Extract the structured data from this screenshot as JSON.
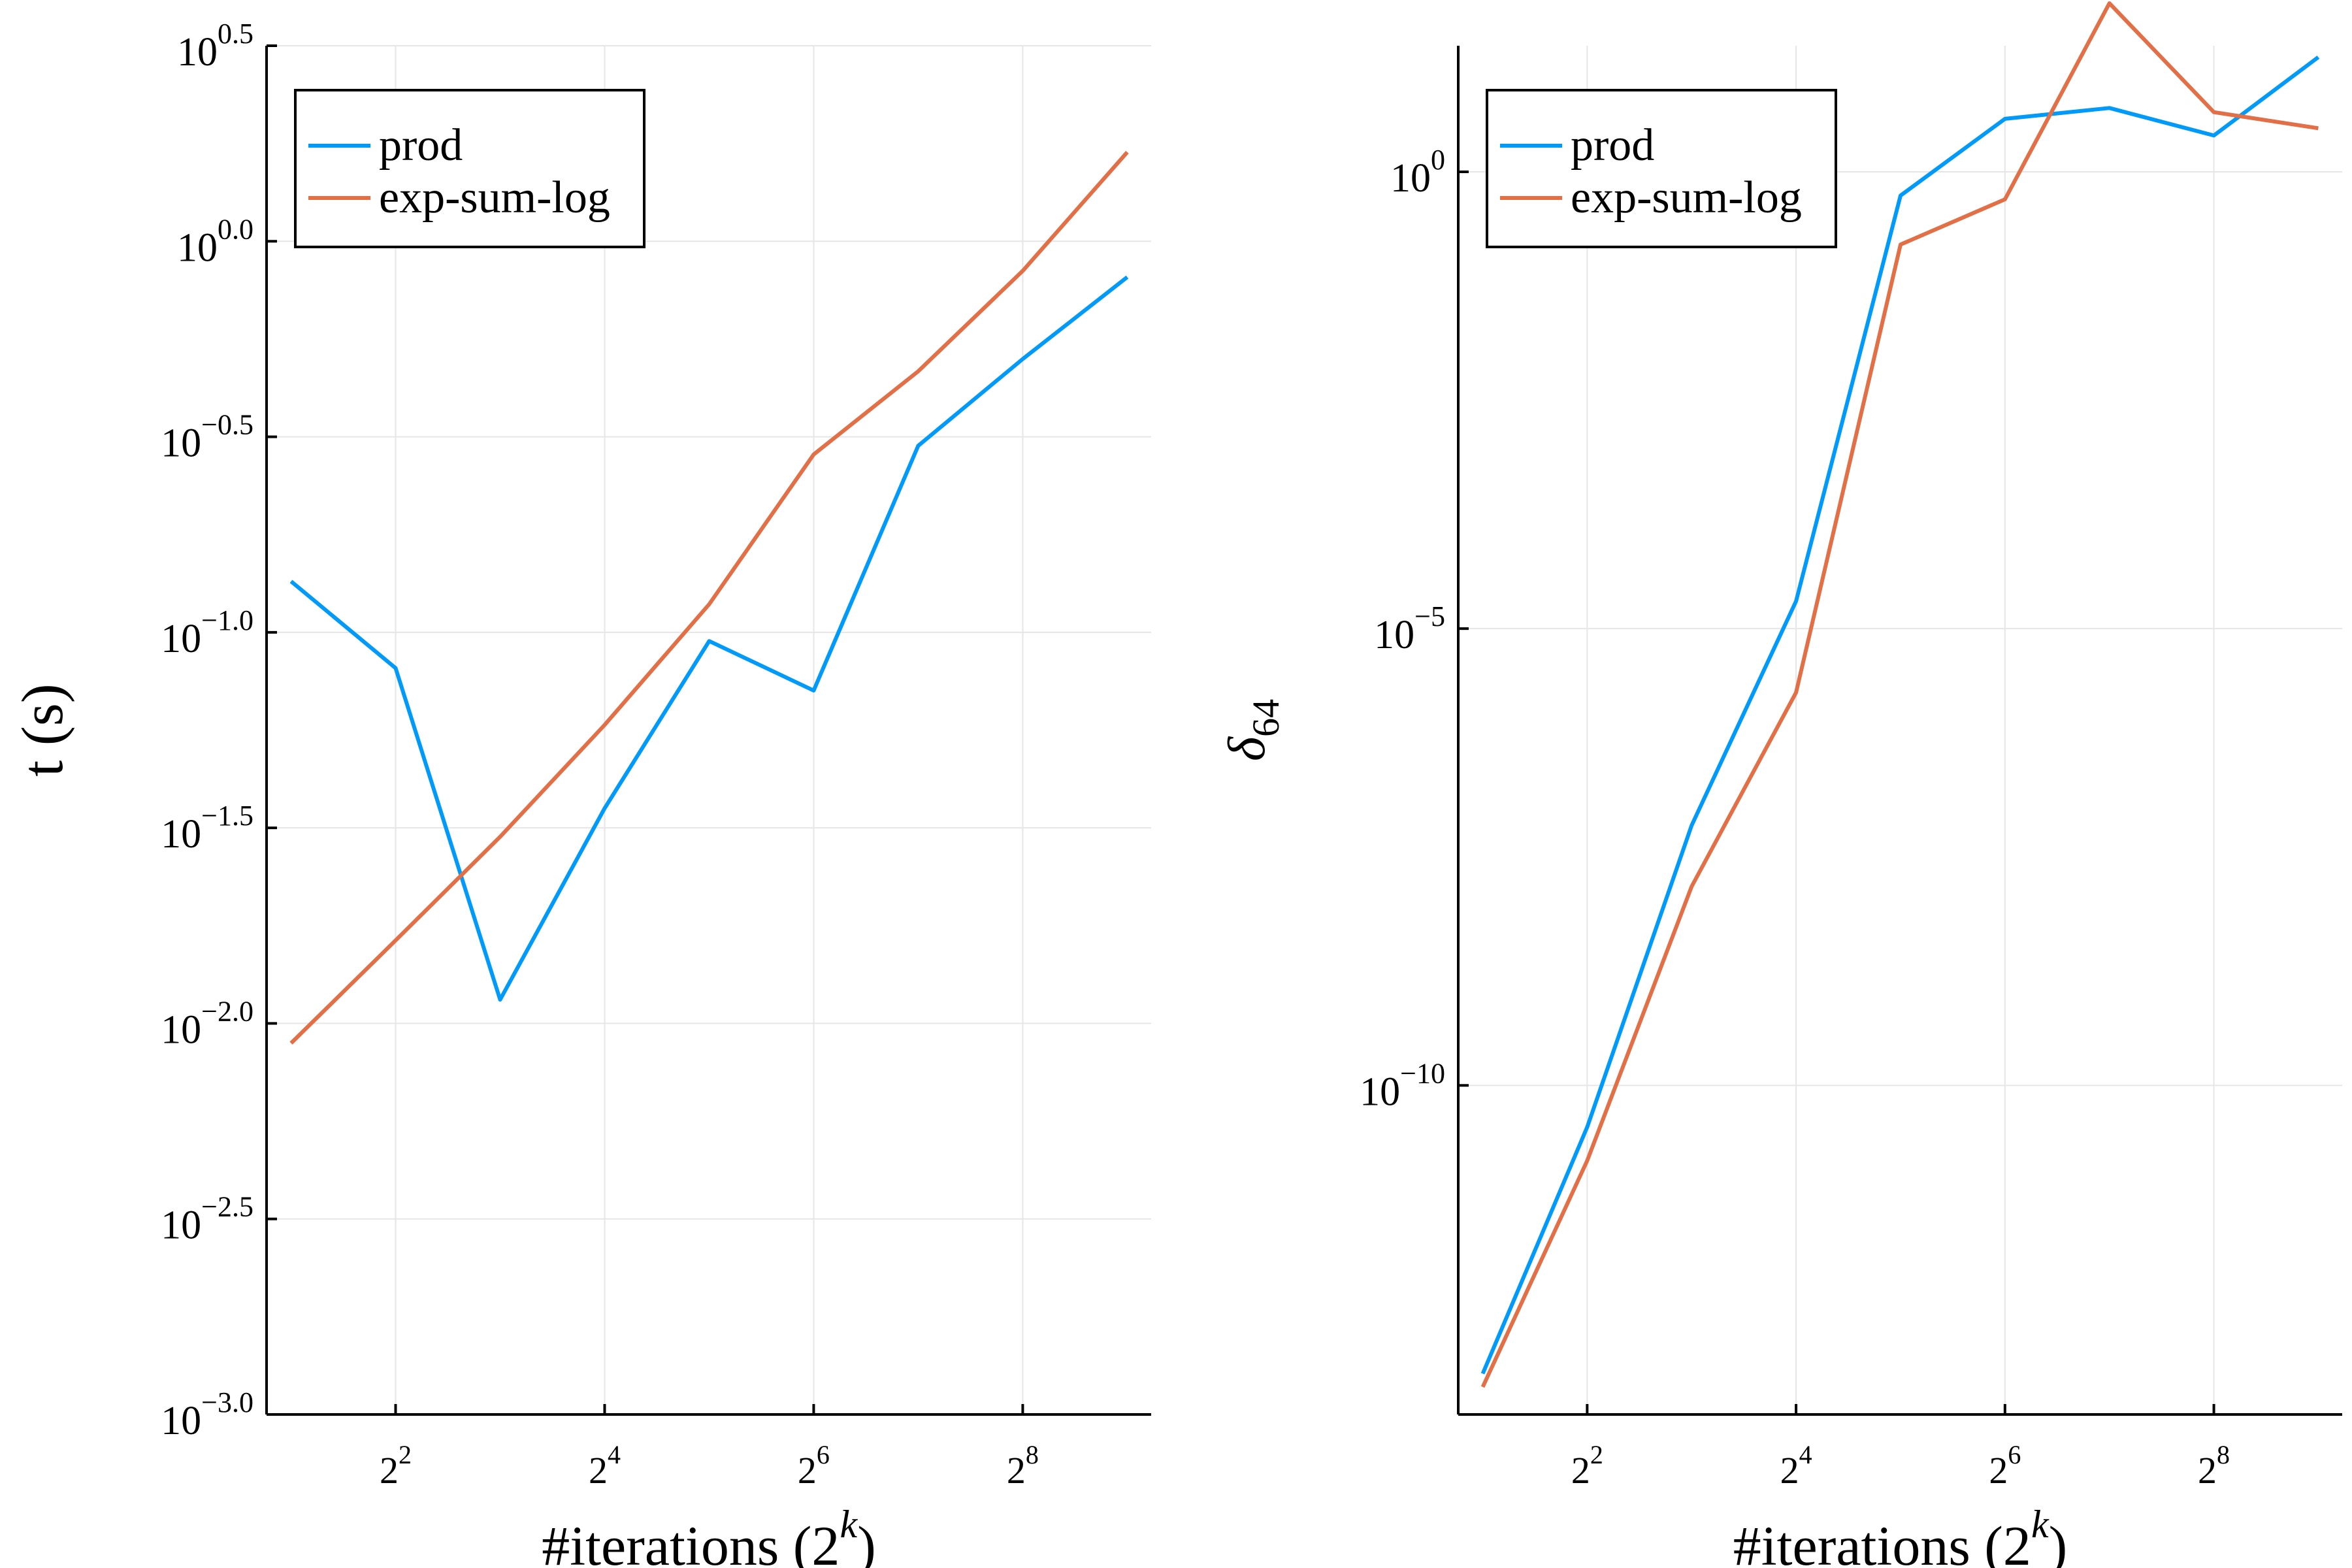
{
  "chart_data": [
    {
      "type": "line",
      "xlabel": "#iterations (2",
      "xlabel_sup": "k",
      "xlabel_end": ")",
      "ylabel": "t (s)",
      "ylabel_sub": "",
      "x_ticks": [
        {
          "value": 4,
          "base": "2",
          "exp": "2"
        },
        {
          "value": 16,
          "base": "2",
          "exp": "4"
        },
        {
          "value": 64,
          "base": "2",
          "exp": "6"
        },
        {
          "value": 256,
          "base": "2",
          "exp": "8"
        }
      ],
      "y_ticks": [
        {
          "value": 0.001,
          "base": "10",
          "exp": "−3.0"
        },
        {
          "value": 0.0031623,
          "base": "10",
          "exp": "−2.5"
        },
        {
          "value": 0.01,
          "base": "10",
          "exp": "−2.0"
        },
        {
          "value": 0.031623,
          "base": "10",
          "exp": "−1.5"
        },
        {
          "value": 0.1,
          "base": "10",
          "exp": "−1.0"
        },
        {
          "value": 0.31623,
          "base": "10",
          "exp": "−0.5"
        },
        {
          "value": 1.0,
          "base": "10",
          "exp": "0.0"
        },
        {
          "value": 3.1623,
          "base": "10",
          "exp": "0.5"
        }
      ],
      "xscale": "log2",
      "yscale": "log10",
      "xlim": [
        1.7,
        600
      ],
      "ylim": [
        0.001,
        3.1623
      ],
      "grid": true,
      "legend_position": "top-left",
      "x": [
        2,
        4,
        8,
        16,
        32,
        64,
        128,
        256,
        512
      ],
      "series": [
        {
          "name": "prod",
          "color": "#009AFA",
          "values": [
            0.135,
            0.081,
            0.0115,
            0.0355,
            0.095,
            0.071,
            0.3,
            0.5,
            0.81
          ]
        },
        {
          "name": "exp-sum-log",
          "color": "#E26F46",
          "values": [
            0.0089,
            0.0163,
            0.03,
            0.058,
            0.118,
            0.285,
            0.465,
            0.84,
            1.69
          ]
        }
      ]
    },
    {
      "type": "line",
      "xlabel": "#iterations (2",
      "xlabel_sup": "k",
      "xlabel_end": ")",
      "ylabel": "δ",
      "ylabel_sub": "64",
      "x_ticks": [
        {
          "value": 4,
          "base": "2",
          "exp": "2"
        },
        {
          "value": 16,
          "base": "2",
          "exp": "4"
        },
        {
          "value": 64,
          "base": "2",
          "exp": "6"
        },
        {
          "value": 256,
          "base": "2",
          "exp": "8"
        }
      ],
      "y_ticks": [
        {
          "value": 1e-10,
          "base": "10",
          "exp": "−10"
        },
        {
          "value": 1e-05,
          "base": "10",
          "exp": "−5"
        },
        {
          "value": 1,
          "base": "10",
          "exp": "0"
        }
      ],
      "xscale": "log2",
      "yscale": "log10",
      "xlim": [
        1.7,
        600
      ],
      "ylim": [
        2.5e-14,
        24
      ],
      "grid": true,
      "legend_position": "top-left",
      "x": [
        2,
        4,
        8,
        16,
        32,
        64,
        128,
        256,
        512
      ],
      "series": [
        {
          "name": "prod",
          "color": "#009AFA",
          "values": [
            7e-14,
            3.5e-11,
            7e-08,
            2e-05,
            0.55,
            3.8,
            5.0,
            2.5,
            18.0
          ]
        },
        {
          "name": "exp-sum-log",
          "color": "#E26F46",
          "values": [
            5e-14,
            1.5e-11,
            1.5e-08,
            2e-06,
            0.16,
            0.5,
            70.0,
            4.5,
            3.0
          ]
        }
      ]
    }
  ]
}
